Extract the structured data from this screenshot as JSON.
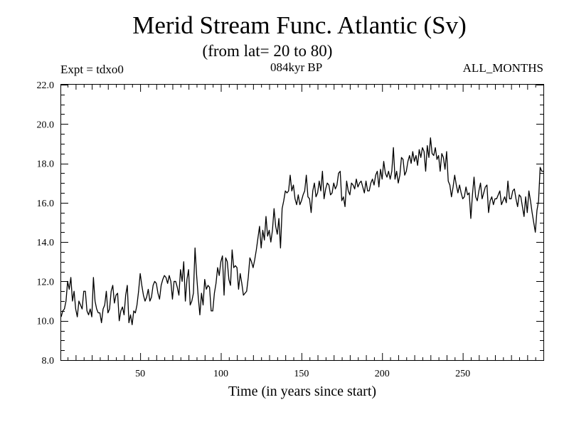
{
  "chart_data": {
    "type": "line",
    "title": "Merid Stream Func. Atlantic (Sv)",
    "subtitle": "(from lat= 20 to 80)",
    "left_label": "Expt = tdxo0",
    "center_label": "084kyr BP",
    "right_label": "ALL_MONTHS",
    "xlabel": "Time (in years since start)",
    "ylabel": "",
    "xlim": [
      1,
      300
    ],
    "ylim": [
      8.0,
      22.0
    ],
    "x_ticks": [
      50,
      100,
      150,
      200,
      250
    ],
    "x_tick_labels": [
      "50",
      "100",
      "150",
      "200",
      "250"
    ],
    "y_ticks": [
      8,
      10,
      12,
      14,
      16,
      18,
      20,
      22
    ],
    "y_tick_labels": [
      "8.0",
      "10.0",
      "12.0",
      "14.0",
      "16.0",
      "18.0",
      "20.0",
      "22.0"
    ],
    "grid": false,
    "series": [
      {
        "name": "Merid Stream Func. Atlantic",
        "color": "#000000",
        "x_start": 1,
        "x_step": 1,
        "values": [
          10.2,
          10.5,
          10.6,
          11.0,
          12.0,
          11.6,
          12.2,
          11.0,
          11.5,
          10.6,
          10.2,
          11.0,
          10.8,
          10.6,
          11.5,
          11.5,
          10.5,
          10.3,
          10.6,
          10.2,
          12.2,
          11.0,
          10.6,
          10.4,
          10.4,
          9.9,
          10.6,
          10.8,
          11.5,
          10.4,
          10.6,
          11.5,
          11.8,
          10.9,
          11.3,
          11.4,
          10.0,
          10.5,
          10.7,
          10.3,
          11.3,
          11.8,
          9.9,
          10.3,
          9.8,
          10.5,
          10.4,
          10.8,
          11.5,
          12.4,
          11.8,
          11.3,
          11.0,
          11.2,
          11.6,
          11.0,
          11.2,
          11.8,
          12.0,
          11.9,
          11.4,
          11.1,
          11.8,
          12.1,
          12.3,
          12.2,
          11.9,
          12.3,
          12.0,
          11.1,
          12.0,
          12.0,
          11.7,
          11.3,
          12.6,
          12.0,
          13.0,
          11.0,
          12.1,
          12.6,
          10.8,
          11.0,
          11.4,
          13.7,
          12.3,
          11.2,
          10.3,
          11.4,
          10.8,
          12.1,
          11.6,
          11.8,
          11.7,
          10.5,
          10.5,
          11.4,
          11.9,
          12.7,
          12.3,
          13.0,
          13.3,
          11.3,
          13.2,
          13.0,
          12.1,
          11.8,
          13.6,
          12.7,
          12.8,
          12.7,
          11.6,
          12.4,
          11.9,
          11.3,
          11.4,
          11.5,
          12.2,
          13.2,
          13.0,
          12.7,
          13.1,
          13.6,
          14.2,
          14.8,
          13.7,
          14.6,
          14.1,
          15.3,
          14.3,
          14.6,
          14.0,
          14.6,
          15.7,
          14.8,
          14.4,
          15.2,
          13.7,
          15.7,
          16.1,
          16.6,
          16.5,
          16.6,
          17.4,
          16.6,
          16.9,
          16.2,
          15.9,
          16.4,
          15.9,
          16.1,
          16.4,
          16.6,
          17.4,
          16.3,
          16.2,
          15.5,
          16.6,
          17.0,
          16.3,
          16.5,
          17.1,
          16.6,
          17.6,
          16.2,
          16.7,
          17.0,
          16.9,
          16.4,
          16.5,
          17.0,
          16.7,
          16.9,
          17.5,
          17.6,
          16.1,
          16.3,
          15.8,
          17.1,
          16.6,
          16.4,
          17.0,
          16.9,
          16.7,
          17.2,
          16.8,
          17.0,
          17.1,
          16.8,
          16.5,
          17.1,
          16.6,
          16.6,
          17.0,
          17.2,
          16.9,
          17.4,
          17.6,
          16.8,
          17.7,
          17.2,
          18.1,
          17.5,
          17.3,
          17.6,
          17.2,
          17.6,
          18.8,
          17.2,
          17.6,
          17.0,
          17.4,
          18.3,
          18.2,
          17.4,
          17.6,
          18.1,
          18.4,
          18.0,
          18.6,
          18.1,
          18.4,
          17.9,
          18.7,
          18.3,
          18.8,
          18.6,
          17.6,
          18.9,
          18.3,
          19.3,
          18.5,
          18.4,
          18.8,
          18.2,
          18.4,
          17.6,
          18.5,
          18.3,
          17.7,
          18.6,
          17.1,
          16.9,
          16.3,
          16.8,
          17.4,
          16.9,
          16.5,
          16.9,
          16.5,
          16.2,
          16.3,
          16.8,
          16.4,
          16.5,
          15.2,
          16.4,
          17.3,
          16.3,
          16.1,
          16.6,
          17.0,
          16.2,
          16.5,
          16.8,
          16.9,
          15.5,
          16.1,
          16.3,
          15.9,
          16.2,
          16.2,
          16.4,
          16.6,
          15.9,
          16.1,
          16.3,
          16.0,
          17.1,
          16.2,
          16.2,
          16.6,
          16.7,
          16.2,
          15.8,
          16.4,
          16.3,
          15.8,
          15.3,
          16.3,
          15.5,
          16.6,
          16.1,
          15.5,
          15.0,
          14.5,
          15.6,
          16.1,
          17.8,
          17.6,
          17.6
        ]
      }
    ]
  }
}
